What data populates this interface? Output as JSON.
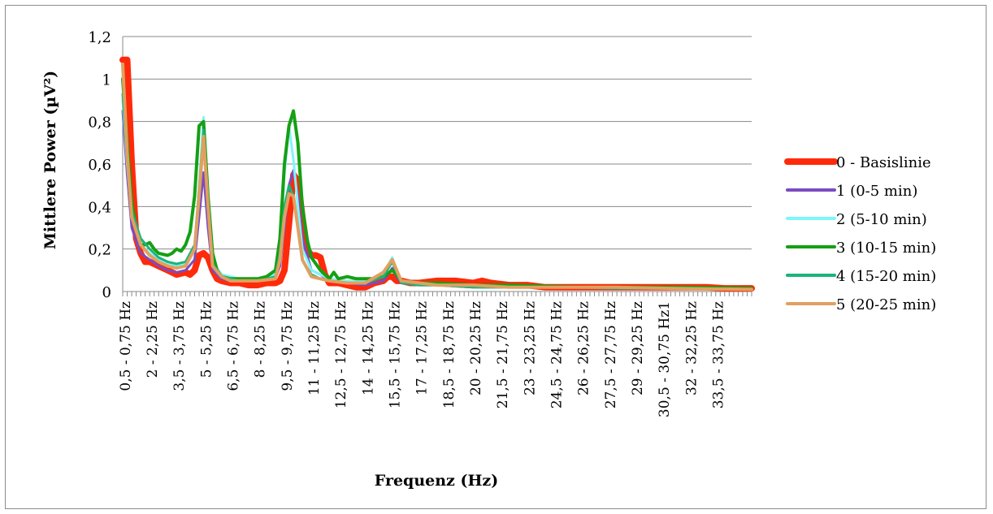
{
  "chart_data": {
    "type": "line",
    "title": "",
    "xlabel": "Frequenz (Hz)",
    "ylabel": "Mittlere Power (µV²)",
    "ylim": [
      0,
      1.2
    ],
    "yticks": [
      "0",
      "0,2",
      "0,4",
      "0,6",
      "0,8",
      "1",
      "1,2"
    ],
    "grid": true,
    "legend_position": "right",
    "x_tick_labels": [
      "0,5 - 0,75 Hz",
      "2 - 2,25 Hz",
      "3,5 - 3,75 Hz",
      "5 - 5,25 Hz",
      "6,5 - 6,75 Hz",
      "8 - 8,25 Hz",
      "9,5 - 9,75 Hz",
      "11 - 11,25 Hz",
      "12,5 - 12,75 Hz",
      "14 - 14,25 Hz",
      "15,5 - 15,75 Hz",
      "17 - 17,25 Hz",
      "18,5 - 18,75 Hz",
      "20 - 20,25 Hz",
      "21,5 - 21,75 Hz",
      "23 - 23,25 Hz",
      "24,5 - 24,75 Hz",
      "26 - 26,25 Hz",
      "27,5 - 27,75 Hz",
      "29 - 29,25 Hz",
      "30,5 - 30,75 Hz1",
      "32 - 32,25 Hz",
      "33,5 - 33,75 Hz"
    ],
    "x_range": [
      0.5,
      35.5
    ],
    "series": [
      {
        "name": "0 - Basislinie",
        "color": "#ff2a0a",
        "width": 8,
        "x": [
          0.5,
          0.75,
          1,
          1.25,
          1.5,
          1.75,
          2,
          2.5,
          3,
          3.5,
          4,
          4.25,
          4.5,
          4.75,
          5,
          5.25,
          5.5,
          5.75,
          6,
          6.5,
          7,
          7.5,
          8,
          8.5,
          9,
          9.25,
          9.5,
          9.75,
          10,
          10.25,
          10.5,
          10.75,
          11,
          11.25,
          11.5,
          11.75,
          12,
          12.5,
          13,
          13.5,
          14,
          14.5,
          15,
          15.25,
          15.5,
          15.75,
          16,
          16.5,
          17,
          18,
          19,
          20,
          20.5,
          21,
          22,
          23,
          24,
          25,
          26,
          27,
          28,
          29,
          30,
          31,
          32,
          33,
          34,
          35,
          35.5
        ],
        "y": [
          1.09,
          1.09,
          0.6,
          0.25,
          0.18,
          0.14,
          0.14,
          0.12,
          0.1,
          0.08,
          0.09,
          0.08,
          0.1,
          0.17,
          0.18,
          0.16,
          0.1,
          0.06,
          0.05,
          0.04,
          0.04,
          0.03,
          0.03,
          0.04,
          0.04,
          0.05,
          0.1,
          0.32,
          0.55,
          0.52,
          0.35,
          0.2,
          0.17,
          0.17,
          0.16,
          0.08,
          0.04,
          0.04,
          0.03,
          0.02,
          0.02,
          0.04,
          0.05,
          0.07,
          0.07,
          0.05,
          0.05,
          0.04,
          0.04,
          0.05,
          0.05,
          0.04,
          0.05,
          0.04,
          0.03,
          0.03,
          0.02,
          0.02,
          0.02,
          0.02,
          0.02,
          0.02,
          0.02,
          0.02,
          0.02,
          0.02,
          0.015,
          0.015,
          0.015
        ]
      },
      {
        "name": "1 (0-5 min)",
        "color": "#7a4cc0",
        "width": 3,
        "x": [
          0.5,
          0.75,
          1,
          1.5,
          2,
          2.5,
          3,
          3.5,
          4,
          4.5,
          4.75,
          5,
          5.25,
          5.5,
          6,
          6.5,
          7,
          8,
          9,
          9.25,
          9.5,
          9.75,
          10,
          10.25,
          10.5,
          11,
          11.5,
          12,
          13,
          14,
          15,
          15.5,
          15.75,
          16,
          17,
          18,
          20,
          22,
          25,
          28,
          31,
          35.5
        ],
        "y": [
          0.85,
          0.55,
          0.3,
          0.18,
          0.15,
          0.12,
          0.1,
          0.09,
          0.1,
          0.15,
          0.35,
          0.56,
          0.3,
          0.1,
          0.06,
          0.05,
          0.05,
          0.05,
          0.06,
          0.12,
          0.3,
          0.5,
          0.57,
          0.45,
          0.25,
          0.1,
          0.08,
          0.05,
          0.04,
          0.03,
          0.05,
          0.11,
          0.07,
          0.04,
          0.03,
          0.03,
          0.02,
          0.02,
          0.02,
          0.015,
          0.015,
          0.01
        ]
      },
      {
        "name": "2 (5-10 min)",
        "color": "#7ff6fa",
        "width": 3,
        "x": [
          0.5,
          0.75,
          1,
          1.5,
          2,
          2.5,
          3,
          3.5,
          4,
          4.5,
          4.75,
          5,
          5.25,
          5.5,
          6,
          6.5,
          7,
          8,
          9,
          9.25,
          9.5,
          9.75,
          10,
          10.25,
          10.5,
          11,
          11.5,
          12,
          13,
          14,
          15,
          15.5,
          15.75,
          16,
          17,
          18,
          20,
          22,
          25,
          28,
          31,
          35.5
        ],
        "y": [
          0.9,
          0.6,
          0.35,
          0.22,
          0.18,
          0.15,
          0.13,
          0.12,
          0.13,
          0.2,
          0.5,
          0.82,
          0.4,
          0.14,
          0.08,
          0.07,
          0.06,
          0.06,
          0.08,
          0.2,
          0.55,
          0.78,
          0.62,
          0.4,
          0.2,
          0.1,
          0.08,
          0.06,
          0.05,
          0.05,
          0.08,
          0.16,
          0.1,
          0.05,
          0.04,
          0.03,
          0.03,
          0.02,
          0.02,
          0.02,
          0.015,
          0.01
        ]
      },
      {
        "name": "3 (10-15 min)",
        "color": "#14a014",
        "width": 4,
        "x": [
          0.5,
          0.75,
          1,
          1.25,
          1.5,
          1.75,
          2,
          2.25,
          2.5,
          3,
          3.25,
          3.5,
          3.75,
          4,
          4.25,
          4.5,
          4.75,
          5,
          5.25,
          5.5,
          5.75,
          6,
          6.5,
          7,
          7.5,
          8,
          8.5,
          9,
          9.25,
          9.5,
          9.75,
          10,
          10.25,
          10.5,
          10.75,
          11,
          11.5,
          12,
          12.25,
          12.5,
          13,
          13.5,
          14,
          14.5,
          15,
          15.5,
          15.75,
          16,
          17,
          18,
          20,
          22,
          24,
          26,
          28,
          30,
          32,
          35.5
        ],
        "y": [
          1.0,
          0.7,
          0.42,
          0.3,
          0.22,
          0.22,
          0.23,
          0.2,
          0.18,
          0.17,
          0.18,
          0.2,
          0.19,
          0.22,
          0.28,
          0.45,
          0.78,
          0.8,
          0.45,
          0.18,
          0.1,
          0.07,
          0.06,
          0.06,
          0.06,
          0.06,
          0.07,
          0.1,
          0.25,
          0.6,
          0.78,
          0.85,
          0.7,
          0.4,
          0.25,
          0.16,
          0.1,
          0.06,
          0.09,
          0.06,
          0.07,
          0.06,
          0.06,
          0.06,
          0.07,
          0.1,
          0.08,
          0.05,
          0.04,
          0.04,
          0.03,
          0.03,
          0.025,
          0.02,
          0.02,
          0.02,
          0.02,
          0.015
        ]
      },
      {
        "name": "4 (15-20 min)",
        "color": "#1ab47a",
        "width": 3,
        "x": [
          0.5,
          0.75,
          1,
          1.5,
          2,
          2.5,
          3,
          3.5,
          4,
          4.5,
          4.75,
          5,
          5.25,
          5.5,
          6,
          6.5,
          7,
          8,
          9,
          9.25,
          9.5,
          9.75,
          10,
          10.25,
          10.5,
          11,
          11.5,
          12,
          13,
          14,
          15,
          15.5,
          15.75,
          16,
          17,
          18,
          20,
          22,
          25,
          28,
          31,
          35.5
        ],
        "y": [
          0.93,
          0.62,
          0.38,
          0.25,
          0.2,
          0.16,
          0.14,
          0.13,
          0.14,
          0.22,
          0.48,
          0.76,
          0.4,
          0.13,
          0.07,
          0.06,
          0.05,
          0.05,
          0.07,
          0.18,
          0.4,
          0.5,
          0.45,
          0.3,
          0.15,
          0.08,
          0.06,
          0.05,
          0.04,
          0.04,
          0.07,
          0.14,
          0.09,
          0.04,
          0.03,
          0.03,
          0.02,
          0.02,
          0.02,
          0.015,
          0.015,
          0.01
        ]
      },
      {
        "name": "5 (20-25 min)",
        "color": "#e0a060",
        "width": 4,
        "x": [
          0.5,
          0.75,
          1,
          1.5,
          2,
          2.5,
          3,
          3.5,
          4,
          4.5,
          4.75,
          5,
          5.25,
          5.5,
          6,
          6.5,
          7,
          8,
          9,
          9.25,
          9.5,
          9.75,
          10,
          10.25,
          10.5,
          11,
          11.5,
          12,
          13,
          14,
          15,
          15.5,
          15.75,
          16,
          17,
          18,
          20,
          22,
          25,
          28,
          31,
          35.5
        ],
        "y": [
          1.07,
          0.65,
          0.35,
          0.22,
          0.17,
          0.14,
          0.12,
          0.11,
          0.12,
          0.2,
          0.45,
          0.73,
          0.4,
          0.12,
          0.07,
          0.05,
          0.05,
          0.05,
          0.06,
          0.15,
          0.35,
          0.46,
          0.45,
          0.3,
          0.15,
          0.07,
          0.06,
          0.05,
          0.04,
          0.04,
          0.09,
          0.15,
          0.1,
          0.05,
          0.04,
          0.03,
          0.03,
          0.02,
          0.02,
          0.02,
          0.015,
          0.01
        ]
      }
    ]
  }
}
